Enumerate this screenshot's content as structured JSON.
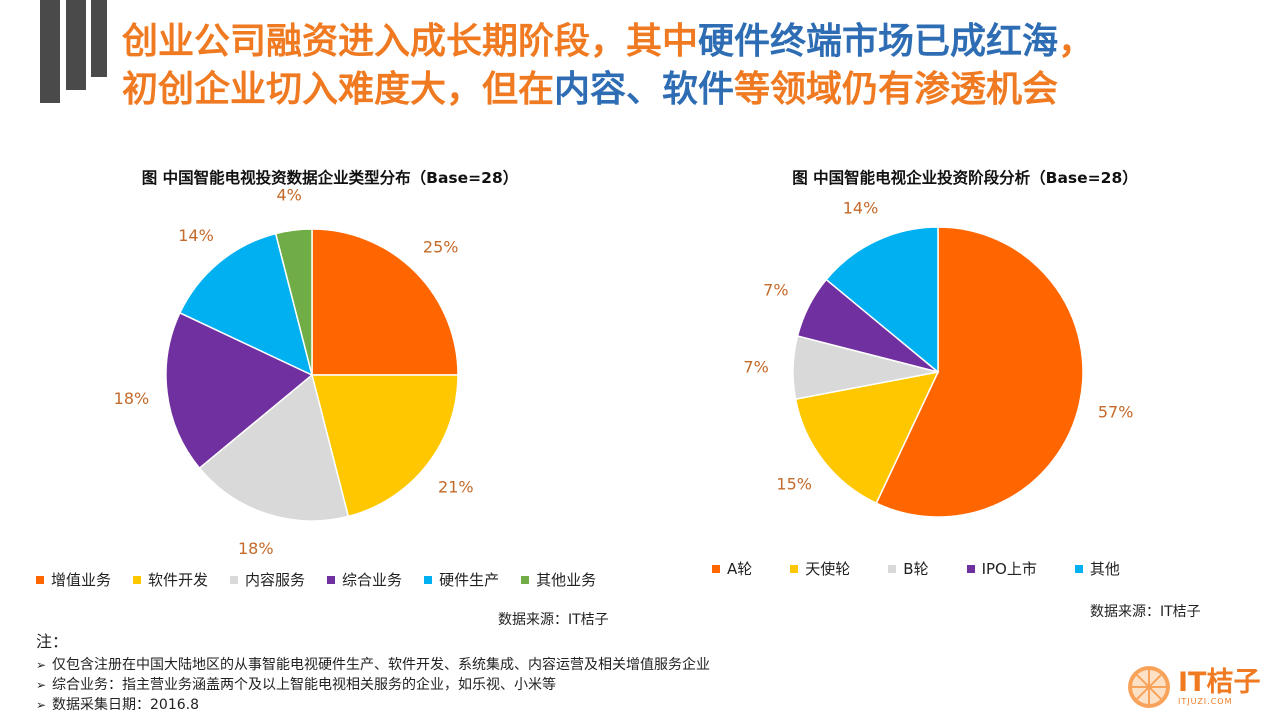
{
  "header": {
    "line1": {
      "a": "创业公司融资进入成长期阶段，其中",
      "b": "硬件终端市场已成红海",
      "c": "，"
    },
    "line2": {
      "a": "初创企业切入难度大，但在",
      "b": "内容、软件",
      "c": "等领域仍有渗透机会"
    }
  },
  "chart_data": [
    {
      "type": "pie",
      "title": "图 中国智能电视投资数据企业类型分布（Base=28）",
      "categories": [
        "增值业务",
        "软件开发",
        "内容服务",
        "综合业务",
        "硬件生产",
        "其他业务"
      ],
      "values": [
        25,
        21,
        18,
        18,
        14,
        4
      ],
      "labels": [
        "25%",
        "21%",
        "18%",
        "18%",
        "14%",
        "4%"
      ],
      "colors": [
        "#ff6600",
        "#ffc700",
        "#d9d9d9",
        "#7030a0",
        "#00b0f0",
        "#70ad47"
      ],
      "start": "12 o'clock, clockwise",
      "legend_position": "bottom",
      "source": "数据来源：IT桔子"
    },
    {
      "type": "pie",
      "title": "图 中国智能电视企业投资阶段分析（Base=28）",
      "categories": [
        "A轮",
        "天使轮",
        "B轮",
        "IPO上市",
        "其他"
      ],
      "values": [
        57,
        15,
        7,
        7,
        14
      ],
      "labels": [
        "57%",
        "15%",
        "7%",
        "7%",
        "14%"
      ],
      "colors": [
        "#ff6600",
        "#ffc700",
        "#d9d9d9",
        "#7030a0",
        "#00b0f0"
      ],
      "start": "12 o'clock, clockwise",
      "legend_position": "bottom",
      "source": "数据来源：IT桔子"
    }
  ],
  "notes": {
    "heading": "注：",
    "items": [
      "仅包含注册在中国大陆地区的从事智能电视硬件生产、软件开发、系统集成、内容运营及相关增值服务企业",
      "综合业务：指主营业务涵盖两个及以上智能电视相关服务的企业，如乐视、小米等",
      "数据采集日期：2016.8"
    ]
  },
  "logo": {
    "name": "IT桔子",
    "url": "ITJUZI.COM"
  },
  "colors": {
    "accent": "#f07a22",
    "highlight": "#2e6db4",
    "label": "#c46a2a"
  }
}
